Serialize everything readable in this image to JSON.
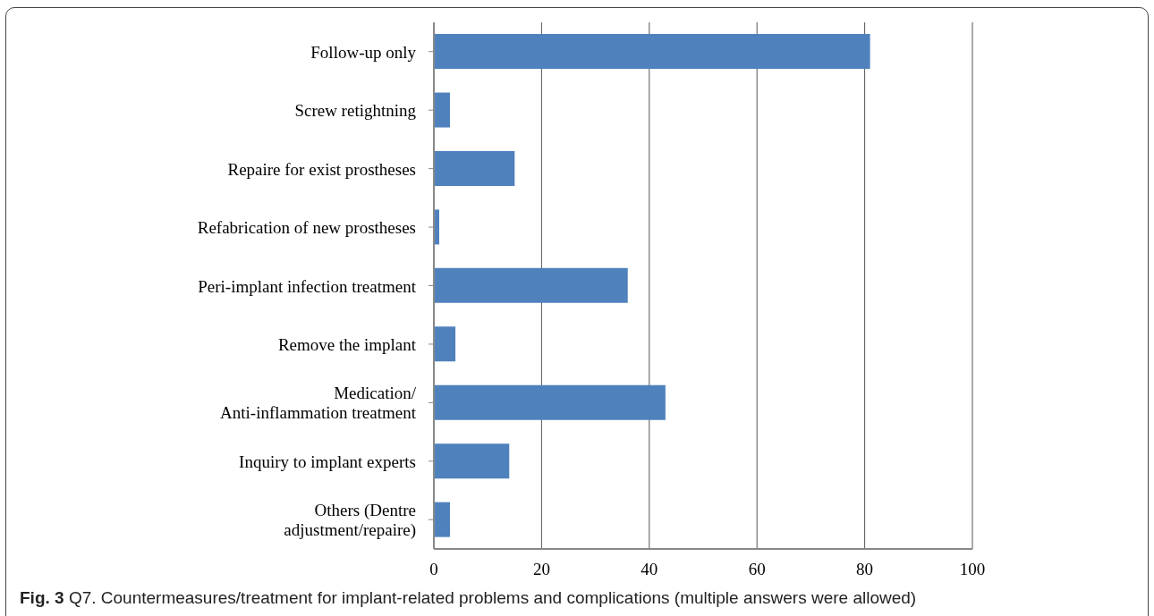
{
  "chart_data": {
    "type": "bar",
    "orientation": "horizontal",
    "categories": [
      "Follow-up only",
      "Screw retightning",
      "Repaire for exist prostheses",
      "Refabrication of new prostheses",
      "Peri-implant infection treatment",
      "Remove the implant",
      "Medication/\nAnti-inflammation treatment",
      "Inquiry to implant experts",
      "Others (Dentre\nadjustment/repaire)"
    ],
    "values": [
      81,
      3,
      15,
      1,
      36,
      4,
      43,
      14,
      3
    ],
    "color": "#4f81bd",
    "xlim": [
      0,
      100
    ],
    "xticks": [
      0,
      20,
      40,
      60,
      80,
      100
    ],
    "grid": "x",
    "annotations": [
      "Fig. 3 Q7. Countermeasures/treatment for implant-related problems and complications (multiple answers were allowed)"
    ]
  }
}
